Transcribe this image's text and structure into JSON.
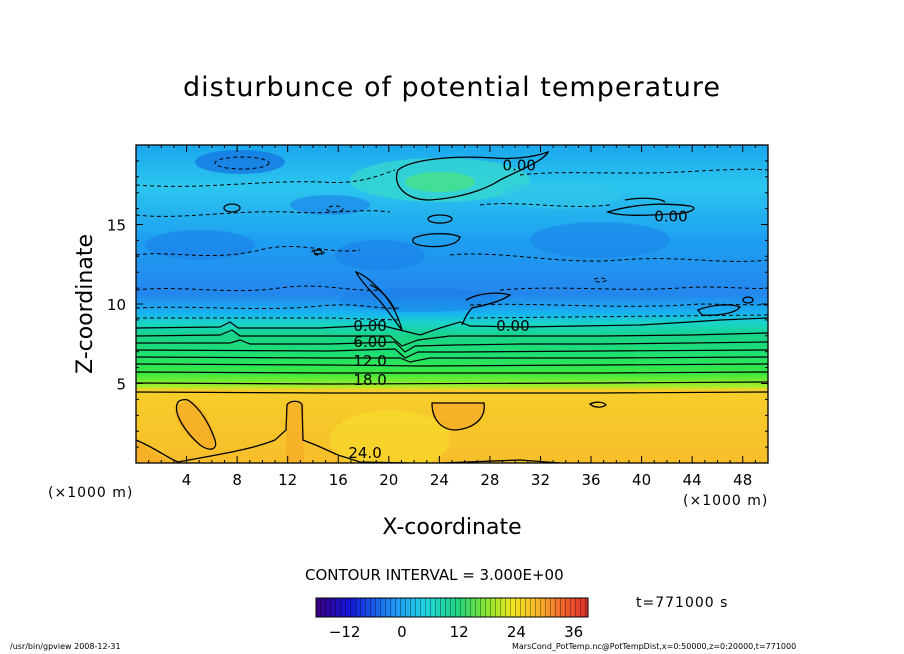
{
  "chart_data": {
    "type": "contour",
    "title": "disturbunce of potential temperature",
    "xlabel": "X-coordinate",
    "ylabel": "Z-coordinate",
    "x_unit": "(×1000 m)",
    "z_unit": "(×1000 m)",
    "xlim": [
      0,
      50
    ],
    "ylim": [
      0,
      20
    ],
    "x_ticks": [
      4,
      8,
      12,
      16,
      20,
      24,
      28,
      32,
      36,
      40,
      44,
      48
    ],
    "y_ticks": [
      5,
      10,
      15
    ],
    "contour_interval_text": "CONTOUR INTERVAL = 3.000E+00",
    "contour_labels": [
      {
        "x": 29.0,
        "z": 18.4,
        "text": "0.00"
      },
      {
        "x": 41.0,
        "z": 15.2,
        "text": "0.00"
      },
      {
        "x": 17.2,
        "z": 8.3,
        "text": "0.00"
      },
      {
        "x": 28.5,
        "z": 8.3,
        "text": "0.00"
      },
      {
        "x": 17.2,
        "z": 7.3,
        "text": "6.00"
      },
      {
        "x": 17.2,
        "z": 6.1,
        "text": "12.0"
      },
      {
        "x": 17.2,
        "z": 4.9,
        "text": "18.0"
      },
      {
        "x": 16.8,
        "z": 0.3,
        "text": "24.0"
      }
    ],
    "colorbar": {
      "ticks": [
        -12,
        0,
        12,
        24,
        36
      ],
      "range": [
        -18,
        39
      ]
    },
    "time_text": "t=771000 s",
    "grid": false
  },
  "footer": {
    "left": "/usr/bin/gpview   2008-12-31",
    "right": "MarsCond_PotTemp.nc@PotTempDist,x=0:50000,z=0:20000,t=771000"
  },
  "colors": {
    "upper_field": "#2aa0ee",
    "stable_band": "#19d488",
    "lower_field": "#f7c22a",
    "frame": "#000000"
  }
}
